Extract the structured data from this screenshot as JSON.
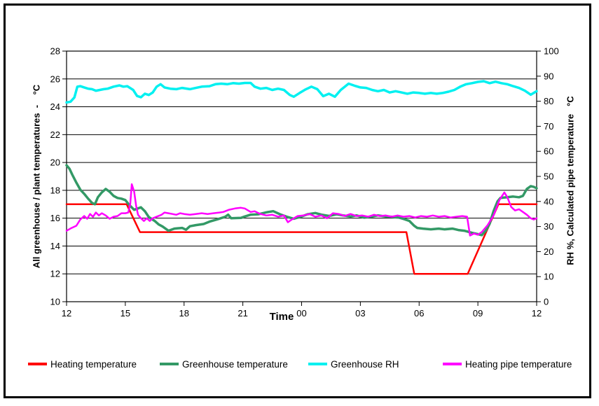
{
  "figure": {
    "background": "#ffffff",
    "border_color": "#000000"
  },
  "chart_data": {
    "type": "line",
    "grid": "horizontal",
    "legend_position": "bottom",
    "x_axis": {
      "label": "Time",
      "range_hours": [
        0,
        24
      ],
      "tick_positions_hours": [
        0,
        3,
        6,
        9,
        12,
        15,
        18,
        21,
        24
      ],
      "tick_labels": [
        "12",
        "15",
        "18",
        "21",
        "00",
        "03",
        "06",
        "09",
        "12"
      ]
    },
    "left_axis": {
      "label": "All greenhouse / plant temperatures  -    °C",
      "range": [
        10,
        28
      ],
      "tick_values": [
        10,
        12,
        14,
        16,
        18,
        20,
        22,
        24,
        26,
        28
      ],
      "tick_labels": [
        "10",
        "12",
        "14",
        "16",
        "18",
        "20",
        "22",
        "24",
        "26",
        "28"
      ]
    },
    "right_axis": {
      "label": "RH %, Calculated pipe temperature   °C",
      "range": [
        0,
        100
      ],
      "tick_values": [
        0,
        10,
        20,
        30,
        40,
        50,
        60,
        70,
        80,
        90,
        100
      ],
      "tick_labels": [
        "0",
        "10",
        "20",
        "30",
        "40",
        "50",
        "60",
        "70",
        "80",
        "90",
        "100"
      ]
    },
    "series": [
      {
        "name": "Heating temperature",
        "color": "#ff0000",
        "width": 2.5,
        "axis": "left",
        "x": [
          0,
          3.07,
          3.75,
          17.35,
          17.75,
          20.48,
          22.05,
          24
        ],
        "y": [
          17,
          17,
          15,
          15,
          12,
          12,
          17,
          17
        ]
      },
      {
        "name": "Greenhouse temperature",
        "color": "#339966",
        "width": 3.5,
        "axis": "left",
        "x": [
          0,
          0.15,
          0.3,
          0.5,
          0.7,
          0.9,
          1.1,
          1.3,
          1.45,
          1.6,
          1.8,
          2.0,
          2.2,
          2.4,
          2.6,
          2.8,
          3.0,
          3.2,
          3.45,
          3.8,
          4.0,
          4.2,
          4.5,
          4.7,
          4.9,
          5.2,
          5.5,
          5.9,
          6.1,
          6.3,
          6.6,
          7.0,
          7.3,
          7.7,
          8.1,
          8.25,
          8.4,
          8.9,
          9.1,
          9.4,
          9.8,
          10.2,
          10.55,
          10.9,
          11.3,
          11.6,
          12.0,
          12.3,
          12.7,
          13.05,
          13.4,
          13.8,
          14.1,
          14.5,
          14.8,
          15.2,
          15.6,
          15.9,
          16.3,
          16.6,
          16.95,
          17.2,
          17.5,
          17.75,
          17.9,
          18.2,
          18.6,
          19.0,
          19.3,
          19.7,
          20.0,
          20.3,
          20.7,
          21.0,
          21.2,
          21.4,
          21.6,
          21.8,
          22.0,
          22.15,
          22.5,
          22.8,
          23.1,
          23.3,
          23.5,
          23.7,
          23.85,
          24
        ],
        "y": [
          19.8,
          19.55,
          19.1,
          18.55,
          18.05,
          17.75,
          17.4,
          17.1,
          17.0,
          17.5,
          17.85,
          18.1,
          17.9,
          17.6,
          17.45,
          17.4,
          17.3,
          16.95,
          16.6,
          16.78,
          16.5,
          16.08,
          15.8,
          15.55,
          15.4,
          15.1,
          15.25,
          15.3,
          15.17,
          15.42,
          15.5,
          15.58,
          15.75,
          15.92,
          16.1,
          16.25,
          16.0,
          16.02,
          16.12,
          16.25,
          16.28,
          16.42,
          16.5,
          16.28,
          16.08,
          15.96,
          16.12,
          16.28,
          16.37,
          16.24,
          16.16,
          16.28,
          16.2,
          16.12,
          16.2,
          16.04,
          16.12,
          16.2,
          16.12,
          16.1,
          16.05,
          15.95,
          15.8,
          15.45,
          15.3,
          15.25,
          15.2,
          15.25,
          15.2,
          15.25,
          15.15,
          15.1,
          14.95,
          14.85,
          14.78,
          15.1,
          15.6,
          16.5,
          17.2,
          17.45,
          17.5,
          17.55,
          17.5,
          17.6,
          18.1,
          18.3,
          18.25,
          18.15
        ]
      },
      {
        "name": "Greenhouse RH",
        "color": "#00f0f0",
        "width": 3.5,
        "axis": "right",
        "x": [
          0,
          0.2,
          0.4,
          0.55,
          0.7,
          0.9,
          1.1,
          1.3,
          1.5,
          1.7,
          1.9,
          2.1,
          2.4,
          2.7,
          2.9,
          3.1,
          3.4,
          3.6,
          3.8,
          4.0,
          4.2,
          4.4,
          4.6,
          4.8,
          5.0,
          5.3,
          5.6,
          5.9,
          6.3,
          6.6,
          6.9,
          7.3,
          7.6,
          7.9,
          8.2,
          8.5,
          8.8,
          9.1,
          9.4,
          9.6,
          9.9,
          10.2,
          10.5,
          10.8,
          11.1,
          11.4,
          11.6,
          11.9,
          12.2,
          12.5,
          12.8,
          13.1,
          13.4,
          13.7,
          14.0,
          14.4,
          14.7,
          15.0,
          15.3,
          15.6,
          15.9,
          16.2,
          16.5,
          16.8,
          17.1,
          17.4,
          17.7,
          18.0,
          18.3,
          18.6,
          18.9,
          19.2,
          19.5,
          19.8,
          20.1,
          20.4,
          20.7,
          21.0,
          21.3,
          21.6,
          21.9,
          22.2,
          22.5,
          22.8,
          23.1,
          23.4,
          23.7,
          24
        ],
        "y": [
          79.5,
          79.8,
          81.5,
          85.8,
          86.0,
          85.5,
          85.0,
          84.8,
          84.2,
          84.5,
          84.8,
          85.0,
          85.8,
          86.3,
          85.8,
          86.0,
          84.5,
          82.1,
          81.6,
          83.0,
          82.5,
          83.5,
          85.8,
          86.8,
          85.5,
          85.0,
          84.8,
          85.3,
          84.8,
          85.3,
          85.8,
          86.0,
          86.8,
          87.0,
          86.8,
          87.2,
          87.0,
          87.3,
          87.3,
          85.8,
          85.0,
          85.3,
          84.5,
          85.0,
          84.5,
          82.5,
          81.8,
          83.3,
          84.7,
          85.8,
          84.8,
          82.0,
          83.0,
          81.8,
          84.5,
          87.0,
          86.2,
          85.5,
          85.3,
          84.5,
          84.0,
          84.5,
          83.5,
          84.0,
          83.5,
          83.0,
          83.5,
          83.3,
          83.0,
          83.3,
          83.0,
          83.3,
          83.8,
          84.5,
          85.8,
          86.8,
          87.2,
          87.7,
          88.0,
          87.2,
          87.8,
          87.2,
          86.8,
          86.0,
          85.3,
          84.2,
          82.6,
          84.0
        ]
      },
      {
        "name": "Heating pipe temperature",
        "color": "#ff00ff",
        "width": 2.5,
        "axis": "right",
        "x": [
          0,
          0.25,
          0.5,
          0.7,
          0.9,
          1.05,
          1.2,
          1.35,
          1.5,
          1.65,
          1.8,
          2.0,
          2.2,
          2.4,
          2.6,
          2.8,
          3.0,
          3.15,
          3.25,
          3.33,
          3.45,
          3.55,
          3.65,
          3.8,
          3.95,
          4.1,
          4.25,
          4.4,
          4.6,
          4.85,
          5.0,
          5.2,
          5.4,
          5.6,
          5.8,
          6.0,
          6.3,
          6.6,
          6.9,
          7.2,
          7.5,
          7.8,
          8.0,
          8.3,
          8.6,
          8.9,
          9.1,
          9.4,
          9.6,
          9.9,
          10.2,
          10.5,
          10.8,
          11.1,
          11.3,
          11.5,
          11.8,
          12.1,
          12.4,
          12.7,
          13.0,
          13.3,
          13.6,
          13.9,
          14.2,
          14.5,
          14.8,
          15.1,
          15.4,
          15.7,
          16.0,
          16.3,
          16.6,
          16.9,
          17.2,
          17.5,
          17.8,
          18.1,
          18.4,
          18.7,
          19.0,
          19.3,
          19.6,
          19.9,
          20.2,
          20.45,
          20.6,
          20.8,
          21.0,
          21.2,
          21.5,
          21.8,
          22.1,
          22.35,
          22.5,
          22.7,
          22.9,
          23.1,
          23.3,
          23.5,
          23.7,
          23.85,
          24
        ],
        "y": [
          28.3,
          29.4,
          30.3,
          32.8,
          34.2,
          33.1,
          35.0,
          33.9,
          35.6,
          34.4,
          35.3,
          34.4,
          33.1,
          33.9,
          34.2,
          35.3,
          35.3,
          35.6,
          38.9,
          46.9,
          43.9,
          38.3,
          34.7,
          33.3,
          32.2,
          33.3,
          32.2,
          33.3,
          33.9,
          34.7,
          35.6,
          35.3,
          35.0,
          34.7,
          35.3,
          35.0,
          34.7,
          35.0,
          35.3,
          35.0,
          35.3,
          35.6,
          35.8,
          36.7,
          37.2,
          37.5,
          37.2,
          35.8,
          36.1,
          35.0,
          34.4,
          34.7,
          33.9,
          34.4,
          31.7,
          32.8,
          34.2,
          34.4,
          35.0,
          33.9,
          34.4,
          33.3,
          35.3,
          35.0,
          34.2,
          35.0,
          34.2,
          34.4,
          33.9,
          34.7,
          34.2,
          34.4,
          33.9,
          34.4,
          33.9,
          34.2,
          33.6,
          34.2,
          33.9,
          34.4,
          33.9,
          34.2,
          33.6,
          33.9,
          34.2,
          33.9,
          26.4,
          27.2,
          26.7,
          27.8,
          30.6,
          34.4,
          40.6,
          43.6,
          41.7,
          37.8,
          36.4,
          36.9,
          35.8,
          34.7,
          33.3,
          32.8,
          33.3
        ]
      }
    ]
  }
}
